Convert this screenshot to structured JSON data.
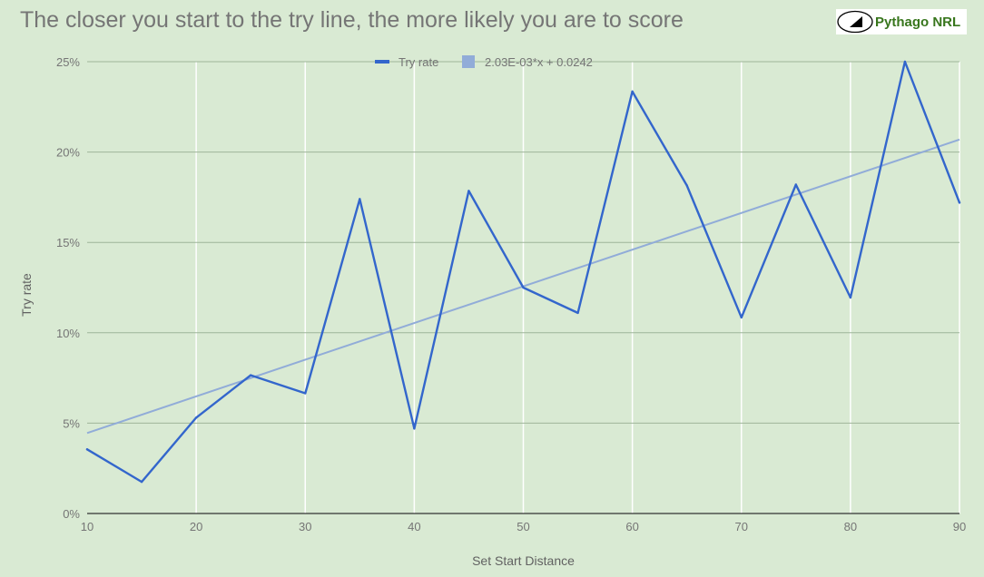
{
  "header": {
    "title": "The closer you start to the try line, the more likely you are to score",
    "logo_text": "Pythago NRL"
  },
  "colors": {
    "background": "#d9ead3",
    "series_line": "#3366cc",
    "trendline": "#91acd8",
    "gridline_horizontal": "#9eb59a",
    "gridline_vertical": "#ffffff",
    "baseline": "#333333",
    "logo_text": "#38761d"
  },
  "chart_data": {
    "type": "line",
    "title": "The closer you start to the try line, the more likely you are to score",
    "xlabel": "Set Start Distance",
    "ylabel": "Try rate",
    "xlim": [
      10,
      90
    ],
    "ylim": [
      0,
      0.25
    ],
    "x_ticks": [
      10,
      20,
      30,
      40,
      50,
      60,
      70,
      80,
      90
    ],
    "x_tick_labels": [
      "10",
      "20",
      "30",
      "40",
      "50",
      "60",
      "70",
      "80",
      "90"
    ],
    "y_ticks": [
      0,
      0.05,
      0.1,
      0.15,
      0.2,
      0.25
    ],
    "y_tick_labels": [
      "0%",
      "5%",
      "10%",
      "15%",
      "20%",
      "25%"
    ],
    "grid": true,
    "legend_position": "top",
    "series": [
      {
        "name": "Try rate",
        "x": [
          10,
          15,
          20,
          25,
          30,
          35,
          40,
          45,
          50,
          55,
          60,
          65,
          70,
          75,
          80,
          85,
          90
        ],
        "values": [
          0.0355,
          0.0175,
          0.053,
          0.0765,
          0.0665,
          0.174,
          0.047,
          0.1785,
          0.125,
          0.111,
          0.2335,
          0.1815,
          0.1085,
          0.182,
          0.1195,
          0.25,
          0.172
        ]
      }
    ],
    "trendline": {
      "name": "2.03E-03*x + 0.0242",
      "slope": 0.00203,
      "intercept": 0.0242,
      "x_range": [
        10,
        90
      ]
    }
  }
}
